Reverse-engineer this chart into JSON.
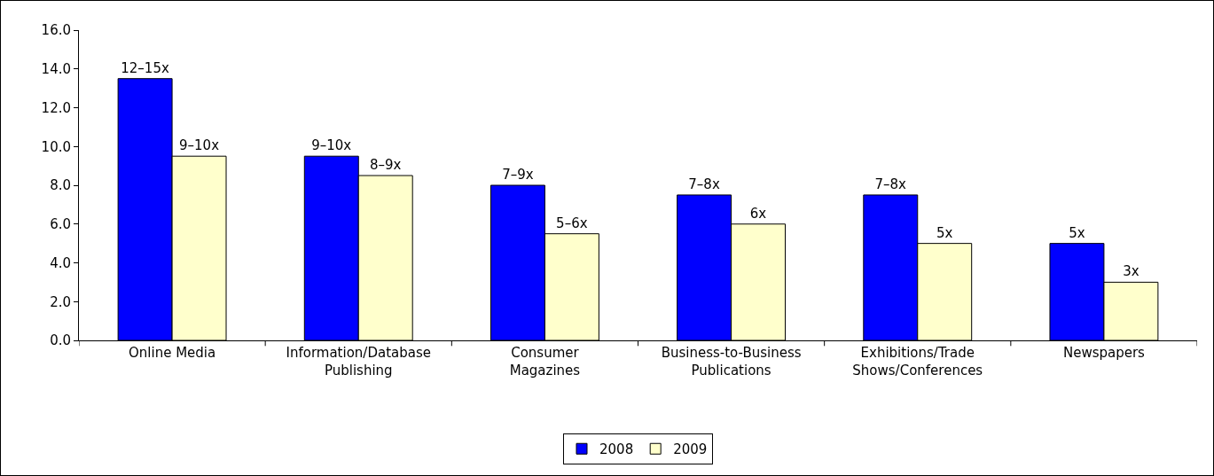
{
  "chart_data": {
    "type": "bar",
    "categories": [
      "Online Media",
      "Information/Database Publishing",
      "Consumer Magazines",
      "Business-to-Business Publications",
      "Exhibitions/Trade Shows/Conferences",
      "Newspapers"
    ],
    "series": [
      {
        "name": "2008",
        "color": "#0000ff",
        "values": [
          13.5,
          9.5,
          8.0,
          7.5,
          7.5,
          5.0
        ],
        "value_labels": [
          "12–15x",
          "9–10x",
          "7–9x",
          "7–8x",
          "7–8x",
          "5x"
        ]
      },
      {
        "name": "2009",
        "color": "#ffffcc",
        "values": [
          9.5,
          8.5,
          5.5,
          6.0,
          5.0,
          3.0
        ],
        "value_labels": [
          "9–10x",
          "8–9x",
          "5–6x",
          "6x",
          "5x",
          "3x"
        ]
      }
    ],
    "ylim": [
      0,
      16
    ],
    "yticks": [
      {
        "value": 0,
        "label": "0.0"
      },
      {
        "value": 2,
        "label": "2.0"
      },
      {
        "value": 4,
        "label": "4.0"
      },
      {
        "value": 6,
        "label": "6.0"
      },
      {
        "value": 8,
        "label": "8.0"
      },
      {
        "value": 10,
        "label": "10.0"
      },
      {
        "value": 12,
        "label": "12.0"
      },
      {
        "value": 14,
        "label": "14.0"
      },
      {
        "value": 16,
        "label": "16.0"
      }
    ],
    "grid": false,
    "legend": "bottom"
  }
}
